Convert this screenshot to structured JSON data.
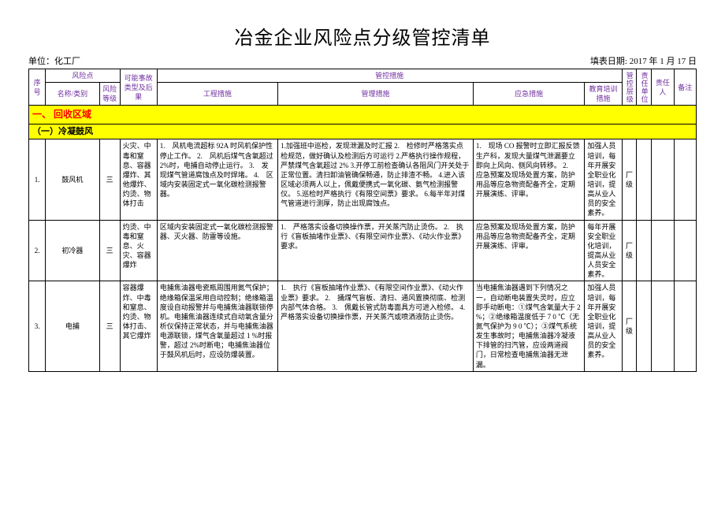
{
  "title": "冶金企业风险点分级管控清单",
  "unit_label": "单位：化工厂",
  "fill_date_label": "填表日期: 2017 年 1 月 17 日",
  "headers": {
    "seq": "序号",
    "risk_point": "风险点",
    "name": "名称/类别",
    "risk_level": "风险等级",
    "acc_type": "可能事故类型及后果",
    "control_measures": "管控措施",
    "eng": "工程措施",
    "mgmt": "管理措施",
    "emerg": "应急措施",
    "train": "教育培训措施",
    "ctrl_level": "管控层级",
    "resp_unit": "责任单位",
    "resp_person": "责任人",
    "remark": "备注"
  },
  "section": "一、 回收区域",
  "subsection": "（一）冷凝鼓风",
  "rows": [
    {
      "seq": "1.",
      "name": "鼓风机",
      "level": "三",
      "type": "火灾、中毒和窒息、容器爆炸、其他爆炸、灼烫、物体打击",
      "eng": "1.　风机电流超标 92A 时风机保护性停止工作。\n2.　风机后煤气含氧超过 2%时，电捕自动停止运行。\n3.　发现煤气管道腐蚀点及时焊堵。\n4.　区域内安装固定式一氧化碳检测报警器。",
      "mgmt": "1.加强班中巡检，发现泄漏及时汇报\n2.　检修时严格落实点检规范，做好确认及检测后方可运行\n2.严格执行操作规程，严禁煤气含氧超过 2%\n3.开停工前检查确认各阻风门开关处于正常位置。清扫卸油管确保畅通，防止排渣不畅。\n4.进入该区域必须两人以上，佩戴便携式一氧化碳、氨气检测报警仪。\n5.巡检时严格执行《有限空间票》要求。\n6.每半年对煤气管道进行测厚，防止出现腐蚀点。",
      "emerg": "1.　现场 CO 报警时立即汇报反馈生产科，发现大量煤气泄漏要立即向上风向、侧风向转移。\n2.　应急预案及现场处置方案，防护用品等应急物资配备齐全，定期开展演练、评审。",
      "train": "加强人员培训，每年开展安全职业化培训，提高从业人员的安全素养。",
      "ctrl": "厂级"
    },
    {
      "seq": "2.",
      "name": "初冷器",
      "level": "三",
      "type": "灼烫、中毒和窒息、火灾、容器爆炸",
      "eng": "区域内安装固定式一氧化碳检测报警器、灭火器、防雷等设施。",
      "mgmt": "1.　严格落实设备切换操作票，开关蒸汽防止烫伤。\n2.　执行《盲板抽堵作业票》、《有限空间作业票》、《动火作业票》要求。",
      "emerg": "应急预案及现场处置方案，防护用品等应急物资配备齐全，定期开展演练、评审。",
      "train": "每年开展安全职业化培训，提高从业人员安全素养。",
      "ctrl": "厂级"
    },
    {
      "seq": "3.",
      "name": "电捕",
      "level": "三",
      "type": "容器爆炸、中毒和窒息、灼烫、物体打击、其它爆炸",
      "eng": "电捕焦油器电瓷瓶周围用氮气保护；绝缘箱保温采用自动控制；绝缘箱温度设自动报警并与电捕焦油器联锁停机。电捕焦油器连续式自动氧含量分析仪保持正常状态，并与电捕焦油器电源联锁，煤气含氧量超过 1 %时报警，超过 2%时断电；电捕焦油器位于鼓风机后时，应设防爆装置。",
      "mgmt": "1.　执行《盲板抽堵作业票》、《有限空间作业票》、《动火作业票》要求。\n2.　捅煤气盲板、清扫、通风置换彻底、检测内部气体合格。\n3.　佩戴长管式防毒面具方可进入检修。\n4.　严格落实设备切换操作票，开关蒸汽或喷洒液防止烫伤。",
      "emerg": "当电捕焦油器遇到下列情况之一，自动断电装置失灵时，应立即手动断电：①煤气含氧量大于 2 %；②绝缘箱温度低于 7 0 ℃（无氮气保护为 9 0 ℃）；③煤气系统发生事故时；电捕焦油器冷凝液下排管的扫汽管，应设两道阀门，日常检查电捕焦油器无泄漏。",
      "train": "加强人员培训，每年开展安全职业化培训，提高从业人员的安全素养。",
      "ctrl": "厂级"
    }
  ]
}
